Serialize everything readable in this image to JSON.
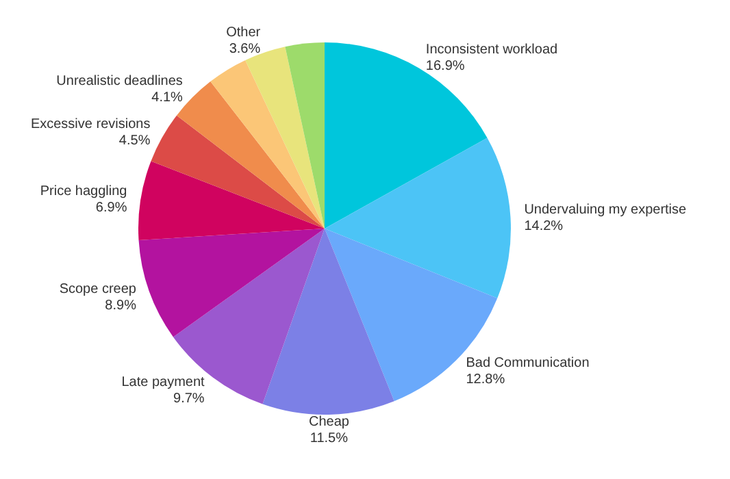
{
  "chart_data": {
    "type": "pie",
    "categories": [
      "Inconsistent workload",
      "Undervaluing my expertise",
      "Bad Communication",
      "Cheap",
      "Late payment",
      "Scope creep",
      "Price haggling",
      "Excessive revisions",
      "Unrealistic deadlines",
      null,
      "Other",
      null
    ],
    "values": [
      16.9,
      14.2,
      12.8,
      11.5,
      9.7,
      8.9,
      6.9,
      4.5,
      4.1,
      3.5,
      3.6,
      3.4
    ],
    "value_labels": [
      "16.9%",
      "14.2%",
      "12.8%",
      "11.5%",
      "9.7%",
      "8.9%",
      "6.9%",
      "4.5%",
      "4.1%",
      null,
      "3.6%",
      null
    ],
    "colors": [
      "#00c6dc",
      "#4cc4f6",
      "#6aa9fb",
      "#7c80e6",
      "#9b58cf",
      "#b3139f",
      "#d0035f",
      "#dc4b47",
      "#f08c4c",
      "#fbc677",
      "#e8e47c",
      "#9ddb6b"
    ],
    "legend": false
  }
}
